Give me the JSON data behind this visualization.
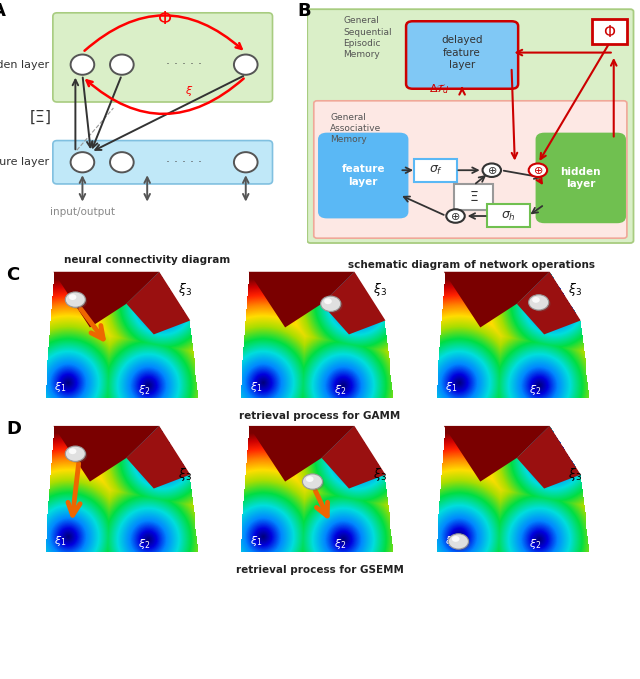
{
  "fig_width": 6.4,
  "fig_height": 6.79,
  "bg_color": "#ffffff",
  "panel_label_fontsize": 13,
  "panel_label_fontweight": "bold",
  "caption_A": "neural connectivity diagram",
  "caption_B": "schematic diagram of network operations",
  "caption_C": "retrieval process for GAMM",
  "caption_D": "retrieval process for GSEMM",
  "green_bg_light": "#deefc8",
  "green_edge": "#b8d890",
  "pink_bg": "#fde8e4",
  "pink_edge": "#f0a898",
  "blue_node_color": "#60b8f0",
  "green_node_color": "#70c050",
  "delayed_blue": "#80c8f4",
  "sigma_f_edge": "#60b8f0",
  "sigma_h_edge": "#70c050",
  "xi_edge": "#999999",
  "phi_red": "#cc0000"
}
